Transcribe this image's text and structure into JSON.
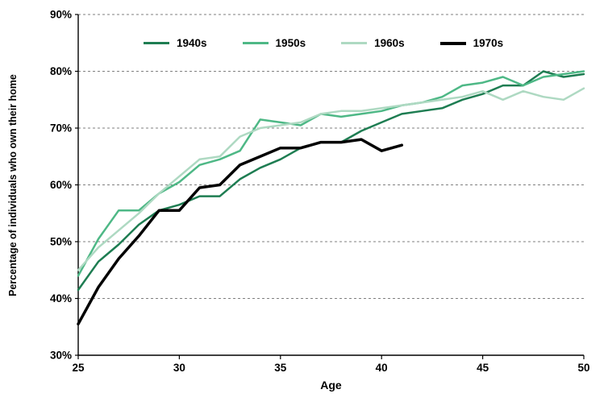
{
  "chart_data": {
    "type": "line",
    "title": "",
    "xlabel": "Age",
    "ylabel": "Percentage of individuals who own their home",
    "xlim": [
      25,
      50
    ],
    "ylim": [
      30,
      90
    ],
    "x_ticks": [
      25,
      30,
      35,
      40,
      45,
      50
    ],
    "y_ticks": [
      30,
      40,
      50,
      60,
      70,
      80,
      90
    ],
    "y_tick_suffix": "%",
    "grid": "horizontal-dashed",
    "grid_color": "#7f7f7f",
    "legend_position": "top-inside",
    "x": [
      25,
      26,
      27,
      28,
      29,
      30,
      31,
      32,
      33,
      34,
      35,
      36,
      37,
      38,
      39,
      40,
      41,
      42,
      43,
      44,
      45,
      46,
      47,
      48,
      49,
      50
    ],
    "series": [
      {
        "name": "1940s",
        "color": "#1e7d52",
        "width": 2.5,
        "values": [
          41.5,
          46.5,
          49.5,
          53,
          55.5,
          56.5,
          58,
          58,
          61,
          63,
          64.5,
          66.5,
          67.5,
          67.5,
          69.5,
          71,
          72.5,
          73,
          73.5,
          75,
          76,
          77.5,
          77.5,
          80,
          79,
          79.5
        ]
      },
      {
        "name": "1950s",
        "color": "#4eb886",
        "width": 2.5,
        "values": [
          44,
          50.5,
          55.5,
          55.5,
          58.5,
          60.5,
          63.5,
          64.5,
          66,
          71.5,
          71,
          70.5,
          72.5,
          72,
          72.5,
          73,
          74,
          74.5,
          75.5,
          77.5,
          78,
          79,
          77.5,
          79,
          79.5,
          80
        ]
      },
      {
        "name": "1960s",
        "color": "#aed9c2",
        "width": 2.5,
        "values": [
          45,
          49,
          52,
          55,
          58.5,
          61.5,
          64.5,
          65,
          68.5,
          70,
          70.5,
          71,
          72.5,
          73,
          73,
          73.5,
          74,
          74.5,
          75,
          75.5,
          76.5,
          75,
          76.5,
          75.5,
          75,
          77
        ]
      },
      {
        "name": "1970s",
        "color": "#000000",
        "width": 3.5,
        "values": [
          35.5,
          42,
          47,
          51,
          55.5,
          55.5,
          59.5,
          60,
          63.5,
          65,
          66.5,
          66.5,
          67.5,
          67.5,
          68,
          66,
          67,
          null,
          null,
          null,
          null,
          null,
          null,
          null,
          null,
          null
        ]
      }
    ]
  }
}
